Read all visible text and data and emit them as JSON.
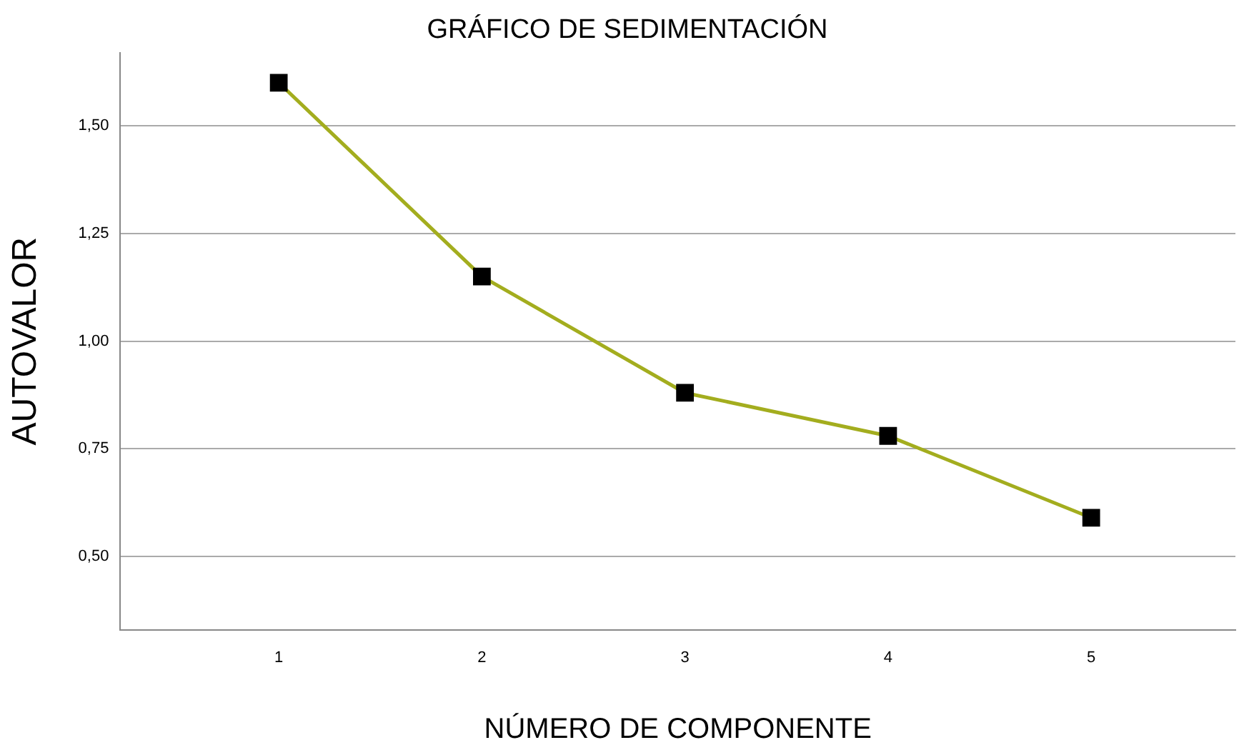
{
  "chart_data": {
    "type": "line",
    "title": "GRÁFICO DE SEDIMENTACIÓN",
    "xlabel": "NÚMERO DE COMPONENTE",
    "ylabel": "AUTOVALOR",
    "x": [
      1,
      2,
      3,
      4,
      5
    ],
    "series": [
      {
        "color": "#a3ad1e",
        "colors": [
          "#000000",
          "#000000",
          "#000000",
          "#000000",
          "#000000"
        ],
        "values": [
          1.6,
          1.15,
          0.88,
          0.78,
          0.59
        ]
      }
    ],
    "marker": "square",
    "line_style": "solid",
    "xlim": [
      0.22,
      5.71
    ],
    "xticks": [
      1,
      2,
      3,
      4,
      5
    ],
    "ylim": [
      0.33,
      1.67
    ],
    "yticks": [
      {
        "value": 0.5,
        "label": "0,50"
      },
      {
        "value": 0.75,
        "label": "0,75"
      },
      {
        "value": 1.0,
        "label": "1,00"
      },
      {
        "value": 1.25,
        "label": "1,25"
      },
      {
        "value": 1.5,
        "label": "1,50"
      }
    ],
    "grid": "y",
    "legend": false
  }
}
